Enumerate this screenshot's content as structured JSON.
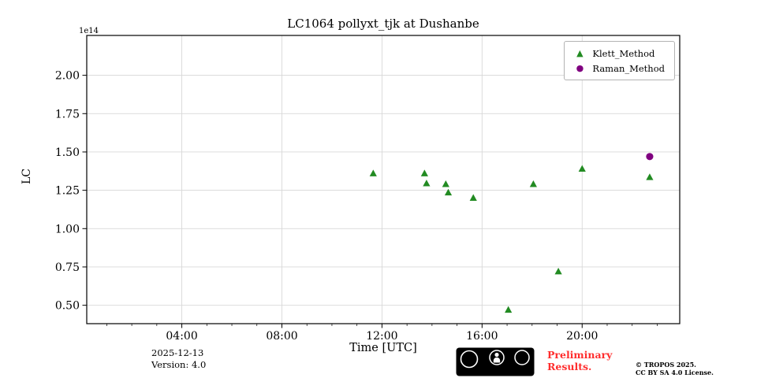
{
  "chart_data": {
    "type": "scatter",
    "title": "LC1064 pollyxt_tjk at Dushanbe",
    "xlabel": "Time [UTC]",
    "ylabel": "LC",
    "y_offset_text": "1e14",
    "grid": true,
    "legend_position": "upper right",
    "xlim": [
      0.2,
      23.9
    ],
    "ylim": [
      0.38,
      2.26
    ],
    "x_ticks": [
      4,
      8,
      12,
      16,
      20
    ],
    "x_tick_labels": [
      "04:00",
      "08:00",
      "12:00",
      "16:00",
      "20:00"
    ],
    "y_ticks": [
      0.5,
      0.75,
      1.0,
      1.25,
      1.5,
      1.75,
      2.0
    ],
    "y_tick_labels": [
      "0.50",
      "0.75",
      "1.00",
      "1.25",
      "1.50",
      "1.75",
      "2.00"
    ],
    "colors": {
      "grid": "#d8d8d8",
      "frame": "#000000"
    },
    "series": [
      {
        "name": "Klett_Method",
        "marker": "triangle",
        "color": "#228B22",
        "x": [
          11.65,
          13.7,
          13.78,
          14.55,
          14.65,
          15.65,
          17.05,
          18.05,
          19.05,
          20.0,
          22.7
        ],
        "y": [
          1.36,
          1.36,
          1.295,
          1.29,
          1.235,
          1.2,
          0.47,
          1.29,
          0.72,
          1.39,
          1.335
        ]
      },
      {
        "name": "Raman_Method",
        "marker": "circle",
        "color": "#800080",
        "x": [
          22.7
        ],
        "y": [
          1.47
        ]
      }
    ]
  },
  "footer": {
    "date": "2025-12-13",
    "version": "Version: 4.0",
    "preliminary": "Preliminary Results.",
    "preliminary_color": "#ff2d2d",
    "copyright": "© TROPOS 2025.",
    "license": "CC BY SA 4.0 License.",
    "badge": {
      "cc": "CC",
      "by": "BY",
      "sa": "SA",
      "sa_arrow": "↺"
    }
  }
}
